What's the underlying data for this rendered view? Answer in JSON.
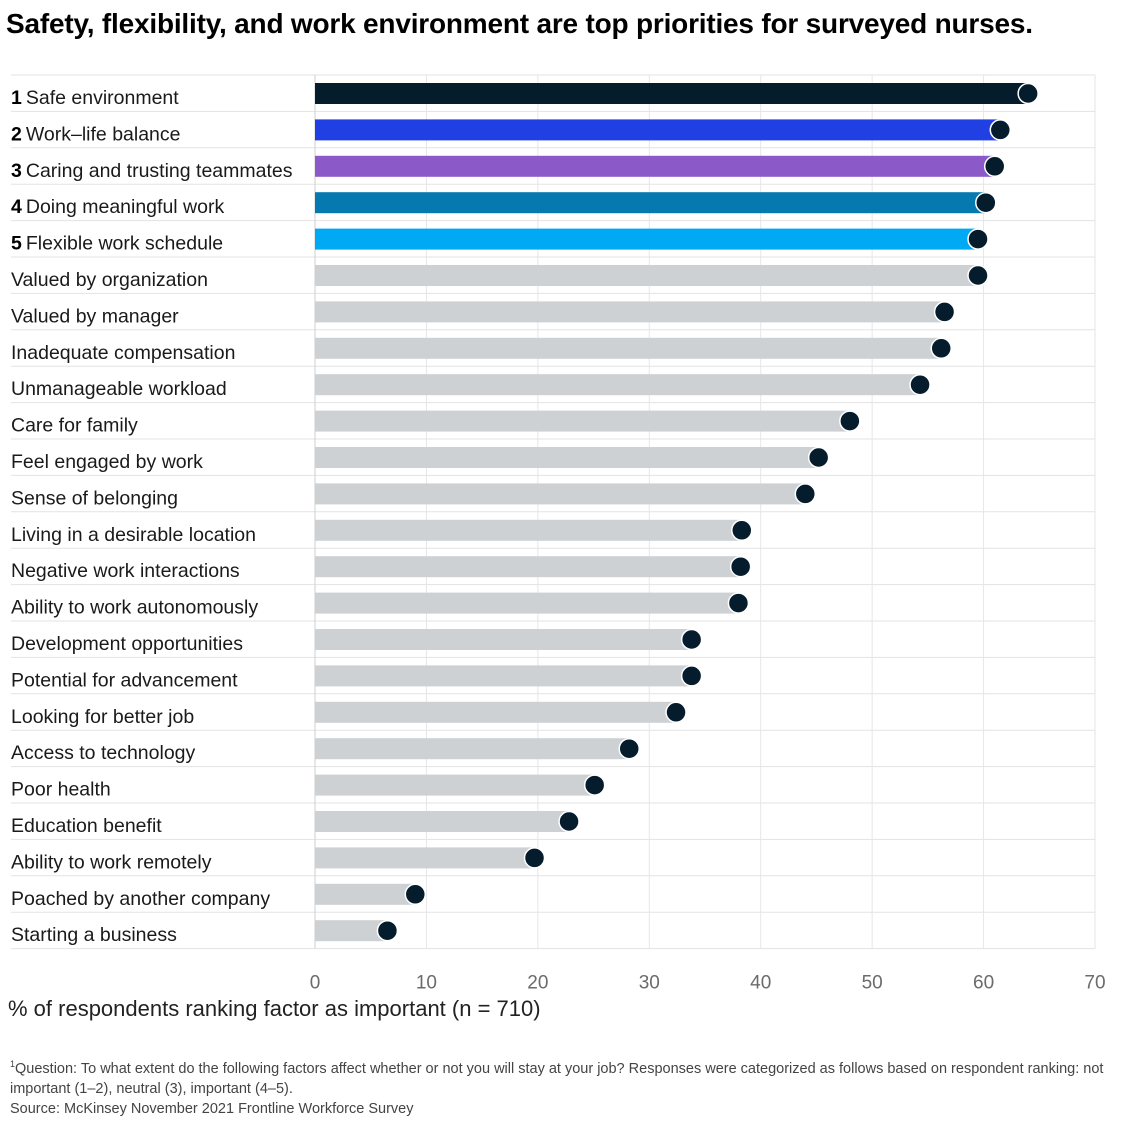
{
  "title": "Safety, flexibility, and work environment are top priorities for surveyed nurses.",
  "footnote": {
    "marker": "1",
    "question": "Question: To what extent do the following factors affect whether or not you will stay at your job? Responses were categorized as follows based on respondent ranking: not important (1–2), neutral (3), important (4–5).",
    "source": "Source: McKinsey November 2021 Frontline Workforce Survey"
  },
  "colors": {
    "dot": "#051c2c",
    "gray_bar": "#cdd1d4",
    "rank_1": "#051c2c",
    "rank_2": "#2140e3",
    "rank_3": "#8c5ac8",
    "rank_4": "#0679b0",
    "rank_5": "#00a9f4"
  },
  "chart_data": {
    "type": "bar",
    "orientation": "horizontal",
    "title": "Safety, flexibility, and work environment are top priorities for surveyed nurses.",
    "xlabel": "% of respondents ranking factor as important (n = 710)",
    "ylabel": "",
    "xlim": [
      0,
      70
    ],
    "xticks": [
      0,
      10,
      20,
      30,
      40,
      50,
      60,
      70
    ],
    "grid": true,
    "categories": [
      {
        "rank": "1",
        "label": "Safe environment",
        "value": 64
      },
      {
        "rank": "2",
        "label": "Work–life balance",
        "value": 61.5
      },
      {
        "rank": "3",
        "label": "Caring and trusting teammates",
        "value": 61
      },
      {
        "rank": "4",
        "label": "Doing meaningful work",
        "value": 60.2
      },
      {
        "rank": "5",
        "label": "Flexible work schedule",
        "value": 59.5
      },
      {
        "rank": "",
        "label": "Valued by organization",
        "value": 59.5
      },
      {
        "rank": "",
        "label": "Valued by manager",
        "value": 56.5
      },
      {
        "rank": "",
        "label": "Inadequate compensation",
        "value": 56.2
      },
      {
        "rank": "",
        "label": "Unmanageable workload",
        "value": 54.3
      },
      {
        "rank": "",
        "label": "Care for family",
        "value": 48
      },
      {
        "rank": "",
        "label": "Feel engaged by work",
        "value": 45.2
      },
      {
        "rank": "",
        "label": "Sense of belonging",
        "value": 44
      },
      {
        "rank": "",
        "label": "Living in a desirable location",
        "value": 38.3
      },
      {
        "rank": "",
        "label": "Negative work interactions",
        "value": 38.2
      },
      {
        "rank": "",
        "label": "Ability to work autonomously",
        "value": 38
      },
      {
        "rank": "",
        "label": "Development opportunities",
        "value": 33.8
      },
      {
        "rank": "",
        "label": "Potential for advancement",
        "value": 33.8
      },
      {
        "rank": "",
        "label": "Looking for better job",
        "value": 32.4
      },
      {
        "rank": "",
        "label": "Access to technology",
        "value": 28.2
      },
      {
        "rank": "",
        "label": "Poor health",
        "value": 25.1
      },
      {
        "rank": "",
        "label": "Education benefit",
        "value": 22.8
      },
      {
        "rank": "",
        "label": "Ability to work remotely",
        "value": 19.7
      },
      {
        "rank": "",
        "label": "Poached by another company",
        "value": 9
      },
      {
        "rank": "",
        "label": "Starting a business",
        "value": 6.5
      }
    ]
  }
}
